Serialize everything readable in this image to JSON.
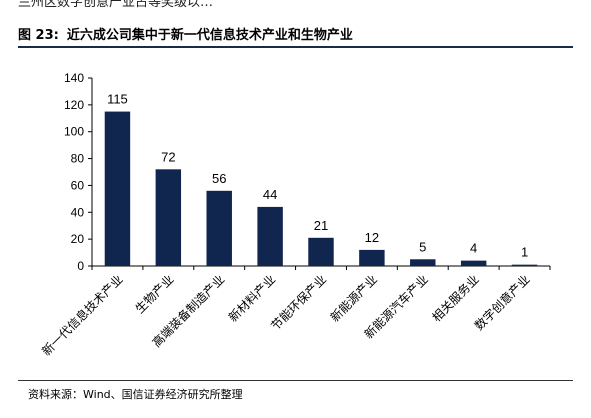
{
  "header_clip": "兰州区数字创意产业占等奖级以…",
  "figure": {
    "label": "图 23:",
    "title": "近六成公司集中于新一代信息技术产业和生物产业"
  },
  "source_text": "资料来源：Wind、国信证券经济研究所整理",
  "colors": {
    "bar": "#10264f",
    "axis": "#000000"
  },
  "chart_data": {
    "type": "bar",
    "categories": [
      "新一代信息技术产业",
      "生物产业",
      "高端装备制造产业",
      "新材料产业",
      "节能环保产业",
      "新能源产业",
      "新能源汽车产业",
      "相关服务业",
      "数字创意产业"
    ],
    "values": [
      115,
      72,
      56,
      44,
      21,
      12,
      5,
      4,
      1
    ],
    "yticks": [
      0,
      20,
      40,
      60,
      80,
      100,
      120,
      140
    ],
    "ylim": [
      0,
      140
    ],
    "title": "",
    "xlabel": "",
    "ylabel": "",
    "grid": false
  }
}
